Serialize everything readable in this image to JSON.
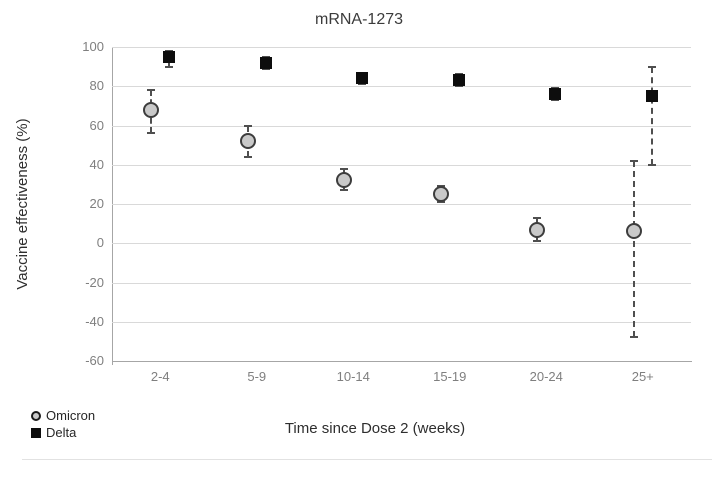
{
  "chart_data": {
    "type": "scatter",
    "title": "mRNA-1273",
    "xlabel": "Time since Dose 2 (weeks)",
    "ylabel": "Vaccine effectiveness (%)",
    "categories": [
      "2-4",
      "5-9",
      "10-14",
      "15-19",
      "20-24",
      "25+"
    ],
    "ylim": [
      -60,
      100
    ],
    "ytick_step": 20,
    "grid": true,
    "legend_position": "bottom-left",
    "error_bar_style": "dashed",
    "series": [
      {
        "name": "Omicron",
        "marker": "circle",
        "fill": "#c9c9c9",
        "stroke": "#3d3d3d",
        "values": [
          68,
          52,
          32,
          25,
          7,
          6
        ],
        "ci": [
          [
            56,
            78
          ],
          [
            44,
            60
          ],
          [
            27,
            38
          ],
          [
            21,
            29
          ],
          [
            1,
            13
          ],
          [
            -48,
            42
          ]
        ]
      },
      {
        "name": "Delta",
        "marker": "square",
        "fill": "#0d0d0d",
        "stroke": "#0d0d0d",
        "values": [
          95,
          92,
          84,
          83,
          76,
          75
        ],
        "ci": [
          [
            90,
            98
          ],
          [
            89,
            95
          ],
          [
            81,
            87
          ],
          [
            80,
            86
          ],
          [
            73,
            79
          ],
          [
            40,
            90
          ]
        ]
      }
    ]
  },
  "colors": {
    "gridline": "#d9d9d9",
    "axis": "#a6a6a6",
    "tick_label": "#7f7f7f",
    "error_bar": "#4f4f4f",
    "title_text": "#3b3b3b"
  }
}
